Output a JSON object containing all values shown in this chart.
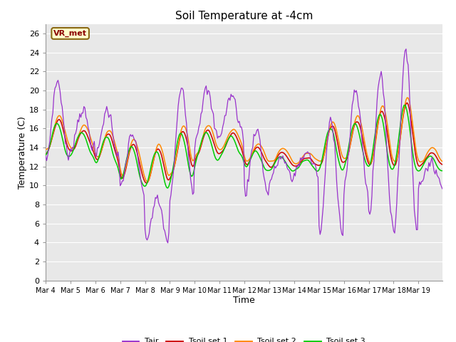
{
  "title": "Soil Temperature at -4cm",
  "xlabel": "Time",
  "ylabel": "Temperature (C)",
  "ylim": [
    0,
    27
  ],
  "yticks": [
    0,
    2,
    4,
    6,
    8,
    10,
    12,
    14,
    16,
    18,
    20,
    22,
    24,
    26
  ],
  "plot_bg_color": "#e8e8e8",
  "fig_bg_color": "#ffffff",
  "grid_color": "#ffffff",
  "annotation_text": "VR_met",
  "annotation_bg": "#ffffcc",
  "annotation_border": "#8b6914",
  "annotation_text_color": "#8b0000",
  "tair_color": "#9933cc",
  "tsoil1_color": "#cc0000",
  "tsoil2_color": "#ff8800",
  "tsoil3_color": "#00cc00",
  "legend_labels": [
    "Tair",
    "Tsoil set 1",
    "Tsoil set 2",
    "Tsoil set 3"
  ],
  "xtick_labels": [
    "Mar 4",
    "Mar 5",
    "Mar 6",
    "Mar 7",
    "Mar 8",
    "Mar 9",
    "Mar 10",
    "Mar 11",
    "Mar 12",
    "Mar 13",
    "Mar 14",
    "Mar 15",
    "Mar 16",
    "Mar 17",
    "Mar 18",
    "Mar 19"
  ]
}
